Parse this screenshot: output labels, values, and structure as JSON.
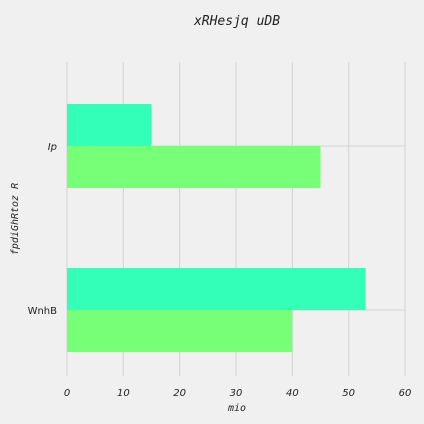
{
  "chart_data": {
    "type": "bar",
    "orientation": "horizontal",
    "title": "xRHesjq  uDB",
    "xlabel": "mio",
    "ylabel": "fpdiGhRtoz R",
    "categories": [
      "Ip",
      "WnhB"
    ],
    "series": [
      {
        "values": [
          15,
          53
        ],
        "color": "#33ffb8"
      },
      {
        "values": [
          45,
          40
        ],
        "color": "#77ff77"
      }
    ],
    "xlim": [
      0,
      60
    ],
    "xticks": [
      0,
      10,
      20,
      30,
      40,
      50,
      60
    ],
    "grid": true,
    "legend": "none"
  }
}
